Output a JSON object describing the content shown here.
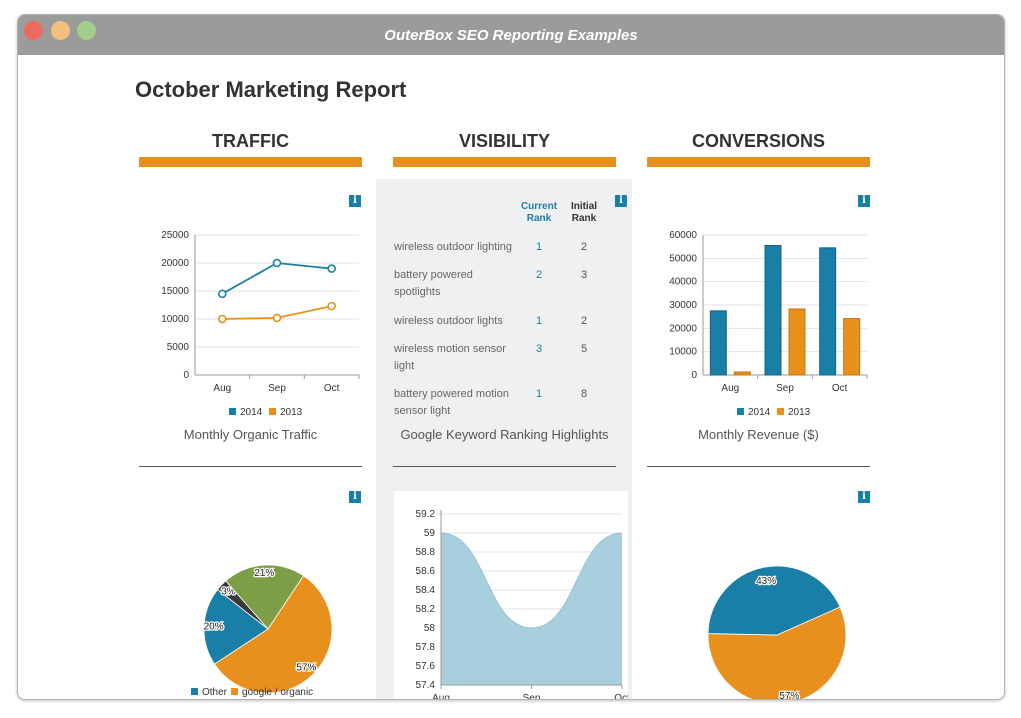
{
  "window": {
    "title": "OuterBox SEO Reporting Examples"
  },
  "report": {
    "title": "October Marketing Report"
  },
  "columns": {
    "traffic": {
      "heading": "TRAFFIC",
      "caption": "Monthly Organic Traffic"
    },
    "visibility": {
      "heading": "VISIBILITY",
      "caption": "Google Keyword Ranking Highlights"
    },
    "conversions": {
      "heading": "CONVERSIONS",
      "caption": "Monthly Revenue ($)"
    }
  },
  "info_label": "i",
  "keywords": {
    "header_current": "Current Rank",
    "header_initial": "Initial Rank",
    "rows": [
      {
        "keyword": "wireless outdoor lighting",
        "current": "1",
        "initial": "2"
      },
      {
        "keyword": "battery powered spotlights",
        "current": "2",
        "initial": "3"
      },
      {
        "keyword": "wireless outdoor lights",
        "current": "1",
        "initial": "2"
      },
      {
        "keyword": "wireless motion sensor light",
        "current": "3",
        "initial": "5"
      },
      {
        "keyword": "battery powered motion sensor light",
        "current": "1",
        "initial": "8"
      }
    ]
  },
  "colors": {
    "accent": "#e8901e",
    "blue": "#1a7fa6",
    "green": "#7b9e47",
    "dark": "#3a3a3a",
    "area": "#a7cfdd"
  },
  "chart_data": [
    {
      "id": "traffic_line",
      "type": "line",
      "categories": [
        "Aug",
        "Sep",
        "Oct"
      ],
      "series": [
        {
          "name": "2014",
          "values": [
            14500,
            20000,
            19000
          ]
        },
        {
          "name": "2013",
          "values": [
            10000,
            10200,
            12300
          ]
        }
      ],
      "ylim": [
        0,
        25000
      ],
      "yticks": [
        "25000",
        "20000",
        "15000",
        "10000",
        "5000",
        "0"
      ],
      "legend": "bottom"
    },
    {
      "id": "revenue_bar",
      "type": "bar",
      "categories": [
        "Aug",
        "Sep",
        "Oct"
      ],
      "series": [
        {
          "name": "2014",
          "values": [
            27500,
            55500,
            54500
          ]
        },
        {
          "name": "2013",
          "values": [
            1300,
            28300,
            24200
          ]
        }
      ],
      "ylim": [
        0,
        60000
      ],
      "yticks": [
        "60000",
        "50000",
        "40000",
        "30000",
        "20000",
        "10000",
        "0"
      ],
      "legend": "bottom"
    },
    {
      "id": "traffic_pie",
      "type": "pie",
      "slices": [
        {
          "name": "google / organic",
          "value": 57,
          "label": "57%"
        },
        {
          "name": "Other",
          "value": 20,
          "label": "20%"
        },
        {
          "name": "",
          "value": 3,
          "label": "3%"
        },
        {
          "name": "",
          "value": 21,
          "label": "21%"
        }
      ],
      "legend": [
        "Other",
        "google / organic"
      ]
    },
    {
      "id": "visibility_area",
      "type": "area",
      "categories": [
        "Aug",
        "Sep",
        "Oct"
      ],
      "values": [
        59.0,
        58.0,
        59.0
      ],
      "ylim": [
        57.4,
        59.2
      ],
      "yticks": [
        "59.2",
        "59",
        "58.8",
        "58.6",
        "58.4",
        "58.2",
        "58",
        "57.8",
        "57.6",
        "57.4"
      ]
    },
    {
      "id": "conversion_pie",
      "type": "pie",
      "slices": [
        {
          "name": "orange",
          "value": 57,
          "label": "57%"
        },
        {
          "name": "blue",
          "value": 43,
          "label": "43%"
        }
      ]
    }
  ]
}
